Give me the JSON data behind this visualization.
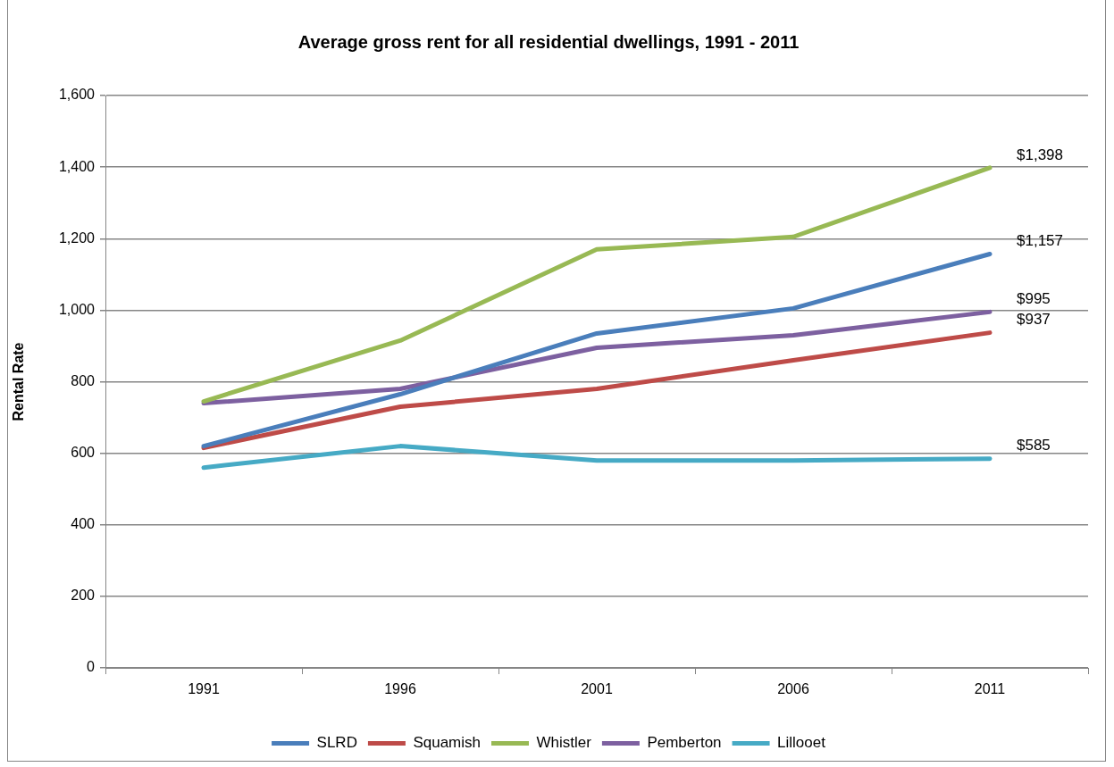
{
  "chart_data": {
    "type": "line",
    "title": "Average gross rent for all residential dwellings, 1991 - 2011",
    "ylabel": "Rental Rate",
    "categories": [
      "1991",
      "1996",
      "2001",
      "2006",
      "2011"
    ],
    "series": [
      {
        "name": "SLRD",
        "color": "#4a7ebb",
        "values": [
          620,
          765,
          935,
          1005,
          1157
        ],
        "value_labels": [
          null,
          null,
          null,
          null,
          "$1,157"
        ]
      },
      {
        "name": "Squamish",
        "color": "#be4b48",
        "values": [
          615,
          730,
          780,
          860,
          937
        ],
        "value_labels": [
          null,
          null,
          null,
          null,
          "$937"
        ]
      },
      {
        "name": "Whistler",
        "color": "#98b954",
        "values": [
          745,
          915,
          1170,
          1205,
          1398
        ],
        "value_labels": [
          null,
          null,
          null,
          null,
          "$1,398"
        ]
      },
      {
        "name": "Pemberton",
        "color": "#7d60a0",
        "values": [
          740,
          780,
          895,
          930,
          995
        ],
        "value_labels": [
          null,
          null,
          null,
          null,
          "$995"
        ]
      },
      {
        "name": "Lillooet",
        "color": "#46aac5",
        "values": [
          560,
          620,
          580,
          580,
          585
        ],
        "value_labels": [
          null,
          null,
          null,
          null,
          "$585"
        ]
      }
    ],
    "ylim": [
      0,
      1600
    ],
    "yticks": [
      0,
      200,
      400,
      600,
      800,
      {
        "value": 1000,
        "label": "1,000"
      },
      {
        "value": 1200,
        "label": "1,200"
      },
      {
        "value": 1400,
        "label": "1,400"
      },
      {
        "value": 1600,
        "label": "1,600"
      }
    ],
    "grid": "y",
    "legend": "bottom",
    "marker": "none",
    "line_style": "solid"
  }
}
